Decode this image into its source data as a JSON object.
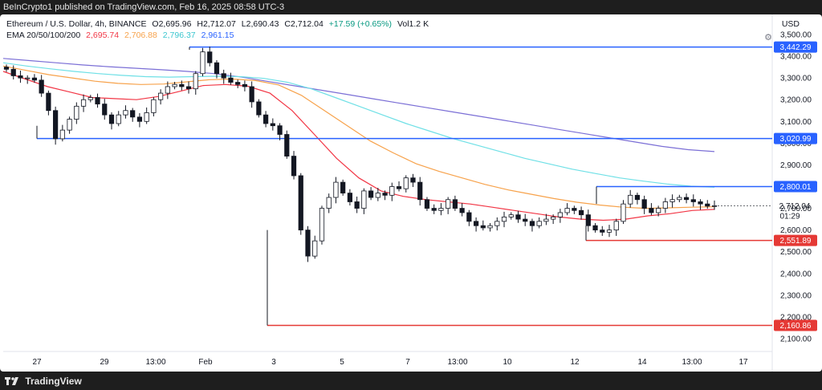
{
  "publisher": "BeInCrypto1 published on TradingView.com, Feb 16, 2025 08:58 UTC-3",
  "footer": {
    "brand": "TradingView"
  },
  "legend": {
    "symbol": "Ethereum / U.S. Dollar, 4h, BINANCE",
    "o": "O2,695.96",
    "h": "H2,712.07",
    "l": "L2,690.43",
    "c": "C2,712.04",
    "chg": "+17.59 (+0.65%)",
    "vol": "Vol1.2 K",
    "ema_label": "EMA 20/50/100/200",
    "ema20": "2,695.74",
    "ema50": "2,706.88",
    "ema100": "2,796.37",
    "ema200": "2,961.15"
  },
  "currency": "USD",
  "chart_data": {
    "type": "candlestick",
    "y_range": [
      2050,
      3520
    ],
    "y_ticks": [
      "3,500.00",
      "3,400.00",
      "3,300.00",
      "3,200.00",
      "3,100.00",
      "3,000.00",
      "2,900.00",
      "2,800.00",
      "2,700.00",
      "2,600.00",
      "2,500.00",
      "2,400.00",
      "2,300.00",
      "2,200.00",
      "2,100.00"
    ],
    "y_tick_values": [
      3500,
      3400,
      3300,
      3200,
      3100,
      3000,
      2900,
      2800,
      2700,
      2600,
      2500,
      2400,
      2300,
      2200,
      2100
    ],
    "x_ticks": [
      "27",
      "29",
      "13:00",
      "Feb",
      "3",
      "5",
      "7",
      "13:00",
      "10",
      "12",
      "14",
      "13:00",
      "17"
    ],
    "candles_close": [
      3340,
      3310,
      3300,
      3300,
      3290,
      3230,
      3150,
      3020,
      3060,
      3110,
      3170,
      3200,
      3210,
      3180,
      3130,
      3090,
      3130,
      3150,
      3120,
      3100,
      3140,
      3200,
      3230,
      3260,
      3270,
      3260,
      3250,
      3320,
      3420,
      3370,
      3320,
      3300,
      3280,
      3270,
      3260,
      3190,
      3130,
      3090,
      3080,
      3040,
      2940,
      2850,
      2600,
      2480,
      2550,
      2700,
      2750,
      2820,
      2770,
      2730,
      2700,
      2780,
      2750,
      2770,
      2760,
      2800,
      2790,
      2840,
      2820,
      2740,
      2700,
      2690,
      2700,
      2740,
      2700,
      2680,
      2640,
      2620,
      2610,
      2620,
      2640,
      2660,
      2670,
      2650,
      2640,
      2620,
      2640,
      2650,
      2660,
      2680,
      2700,
      2690,
      2670,
      2620,
      2600,
      2590,
      2600,
      2640,
      2720,
      2760,
      2740,
      2700,
      2680,
      2700,
      2730,
      2740,
      2750,
      2740,
      2730,
      2720,
      2710,
      2712
    ],
    "ema20_values": [
      3330,
      3295,
      3260,
      3235,
      3210,
      3205,
      3200,
      3215,
      3240,
      3265,
      3270,
      3262,
      3230,
      3150,
      3040,
      2930,
      2840,
      2780,
      2755,
      2740,
      2730,
      2720,
      2705,
      2690,
      2675,
      2660,
      2650,
      2645,
      2650,
      2665,
      2675,
      2690,
      2695
    ],
    "ema50_values": [
      3355,
      3335,
      3315,
      3300,
      3285,
      3275,
      3270,
      3272,
      3282,
      3292,
      3295,
      3288,
      3268,
      3220,
      3150,
      3080,
      3010,
      2955,
      2905,
      2870,
      2840,
      2810,
      2785,
      2765,
      2745,
      2728,
      2715,
      2705,
      2700,
      2702,
      2705,
      2707
    ],
    "ema100_values": [
      3370,
      3355,
      3342,
      3330,
      3320,
      3312,
      3306,
      3304,
      3306,
      3308,
      3306,
      3298,
      3280,
      3250,
      3210,
      3170,
      3130,
      3090,
      3055,
      3020,
      2990,
      2960,
      2930,
      2905,
      2880,
      2860,
      2840,
      2825,
      2812,
      2802,
      2797
    ],
    "ema200_values": [
      3390,
      3380,
      3370,
      3360,
      3352,
      3345,
      3338,
      3330,
      3320,
      3305,
      3285,
      3265,
      3245,
      3225,
      3205,
      3185,
      3165,
      3145,
      3125,
      3105,
      3085,
      3065,
      3045,
      3025,
      3005,
      2985,
      2970,
      2961
    ],
    "levels": [
      {
        "value": 3442.29,
        "label": "3,442.29",
        "color": "#2962ff"
      },
      {
        "value": 3020.99,
        "label": "3,020.99",
        "color": "#2962ff"
      },
      {
        "value": 2800.01,
        "label": "2,800.01",
        "color": "#2962ff"
      },
      {
        "value": 2551.89,
        "label": "2,551.89",
        "color": "#e53935"
      },
      {
        "value": 2160.86,
        "label": "2,160.86",
        "color": "#e53935"
      }
    ],
    "last_price": {
      "value": 2712.04,
      "label": "2,712.04",
      "timer": "01:29"
    }
  },
  "colors": {
    "ema20": "#f23645",
    "ema50": "#f7a24b",
    "ema100": "#6fe0e6",
    "ema200": "#7b6fd6",
    "support": "#e53935",
    "resistance": "#2962ff"
  }
}
